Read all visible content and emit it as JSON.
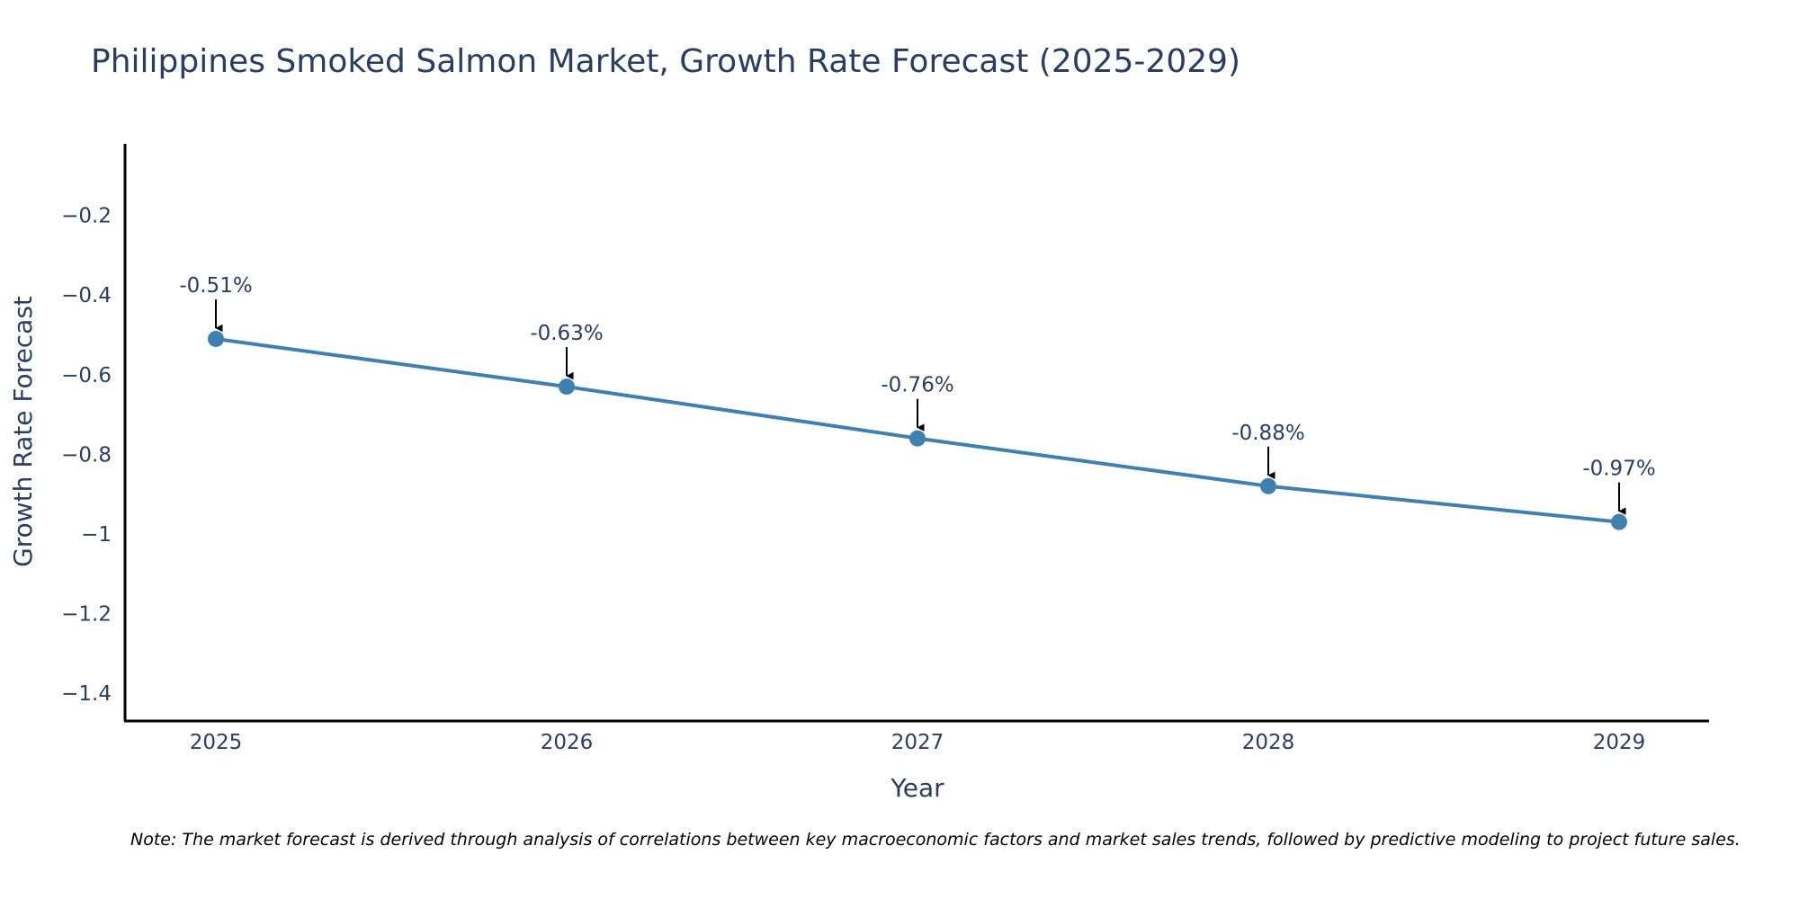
{
  "chart_data": {
    "type": "line",
    "title": "Philippines Smoked Salmon Market, Growth Rate Forecast (2025-2029)",
    "xlabel": "Year",
    "ylabel": "Growth Rate Forecast",
    "categories": [
      "2025",
      "2026",
      "2027",
      "2028",
      "2029"
    ],
    "series": [
      {
        "name": "Growth Rate Forecast",
        "values": [
          -0.51,
          -0.63,
          -0.76,
          -0.88,
          -0.97
        ],
        "labels": [
          "-0.51%",
          "-0.63%",
          "-0.76%",
          "-0.88%",
          "-0.97%"
        ],
        "color": "#4080b0"
      }
    ],
    "y_ticks": [
      -0.2,
      -0.4,
      -0.6,
      -0.8,
      -1,
      -1.2,
      -1.4
    ],
    "y_tick_labels": [
      "−0.2",
      "−0.4",
      "−0.6",
      "−0.8",
      "−1",
      "−1.2",
      "−1.4"
    ],
    "ylim": [
      -1.47,
      -0.02
    ],
    "grid": false,
    "note": "Note: The market forecast is derived through analysis of correlations between key macroeconomic factors and market sales trends, followed by predictive modeling to project future sales."
  }
}
